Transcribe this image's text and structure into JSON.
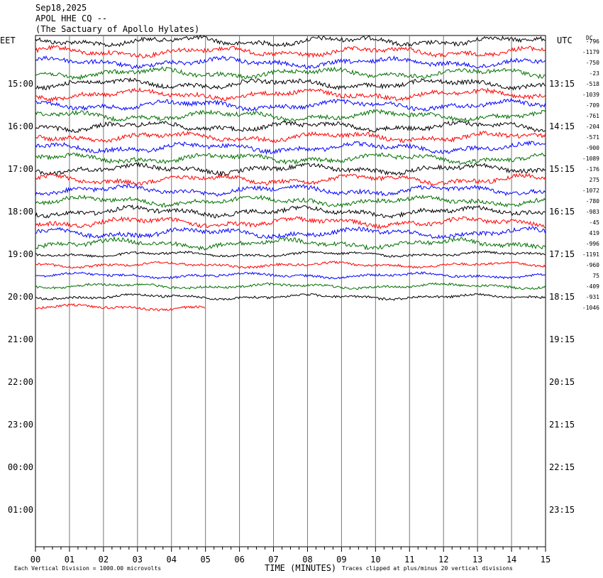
{
  "header": {
    "date": "Sep18,2025",
    "station": "APOL HHE CQ --",
    "site": "(The Sactuary of Apollo Hylates)"
  },
  "left_timezone": "EET",
  "right_timezone": "UTC",
  "dc_label": "DC",
  "footer": {
    "scale_note": "Each Vertical Division = 1000.00 microvolts",
    "clip_note": "Traces clipped at plus/minus 20 vertical divisions"
  },
  "chart_data": {
    "type": "line",
    "xlabel": "TIME (MINUTES)",
    "x_ticks": [
      "00",
      "01",
      "02",
      "03",
      "04",
      "05",
      "06",
      "07",
      "08",
      "09",
      "10",
      "11",
      "12",
      "13",
      "14",
      "15"
    ],
    "xlim": [
      0,
      15
    ],
    "left_hour_labels": [
      "15:00",
      "16:00",
      "17:00",
      "18:00",
      "19:00",
      "20:00",
      "21:00",
      "22:00",
      "23:00",
      "00:00",
      "01:00"
    ],
    "right_hour_labels": [
      "13:15",
      "14:15",
      "15:15",
      "16:15",
      "17:15",
      "18:15",
      "19:15",
      "20:15",
      "21:15",
      "22:15",
      "23:15"
    ],
    "trace_colors": [
      "#000000",
      "#ff0000",
      "#0000ff",
      "#007000"
    ],
    "traces": [
      {
        "dc": "-796",
        "color": "#000000",
        "end_minute": 15
      },
      {
        "dc": "-1179",
        "color": "#ff0000",
        "end_minute": 15
      },
      {
        "dc": "-750",
        "color": "#0000ff",
        "end_minute": 15
      },
      {
        "dc": "-23",
        "color": "#007000",
        "end_minute": 15
      },
      {
        "dc": "-518",
        "color": "#000000",
        "end_minute": 15
      },
      {
        "dc": "-1039",
        "color": "#ff0000",
        "end_minute": 15
      },
      {
        "dc": "-709",
        "color": "#0000ff",
        "end_minute": 15
      },
      {
        "dc": "-761",
        "color": "#007000",
        "end_minute": 15
      },
      {
        "dc": "-204",
        "color": "#000000",
        "end_minute": 15
      },
      {
        "dc": "-571",
        "color": "#ff0000",
        "end_minute": 15
      },
      {
        "dc": "-900",
        "color": "#0000ff",
        "end_minute": 15
      },
      {
        "dc": "-1089",
        "color": "#007000",
        "end_minute": 15
      },
      {
        "dc": "-176",
        "color": "#000000",
        "end_minute": 15
      },
      {
        "dc": "275",
        "color": "#ff0000",
        "end_minute": 15
      },
      {
        "dc": "-1072",
        "color": "#0000ff",
        "end_minute": 15
      },
      {
        "dc": "-780",
        "color": "#007000",
        "end_minute": 15
      },
      {
        "dc": "-983",
        "color": "#000000",
        "end_minute": 15
      },
      {
        "dc": "-45",
        "color": "#ff0000",
        "end_minute": 15
      },
      {
        "dc": "419",
        "color": "#0000ff",
        "end_minute": 15
      },
      {
        "dc": "-996",
        "color": "#007000",
        "end_minute": 15
      },
      {
        "dc": "-1191",
        "color": "#000000",
        "end_minute": 15
      },
      {
        "dc": "-960",
        "color": "#ff0000",
        "end_minute": 15
      },
      {
        "dc": "75",
        "color": "#0000ff",
        "end_minute": 15
      },
      {
        "dc": "-409",
        "color": "#007000",
        "end_minute": 15
      },
      {
        "dc": "-931",
        "color": "#000000",
        "end_minute": 15
      },
      {
        "dc": "-1046",
        "color": "#ff0000",
        "end_minute": 5
      }
    ]
  }
}
